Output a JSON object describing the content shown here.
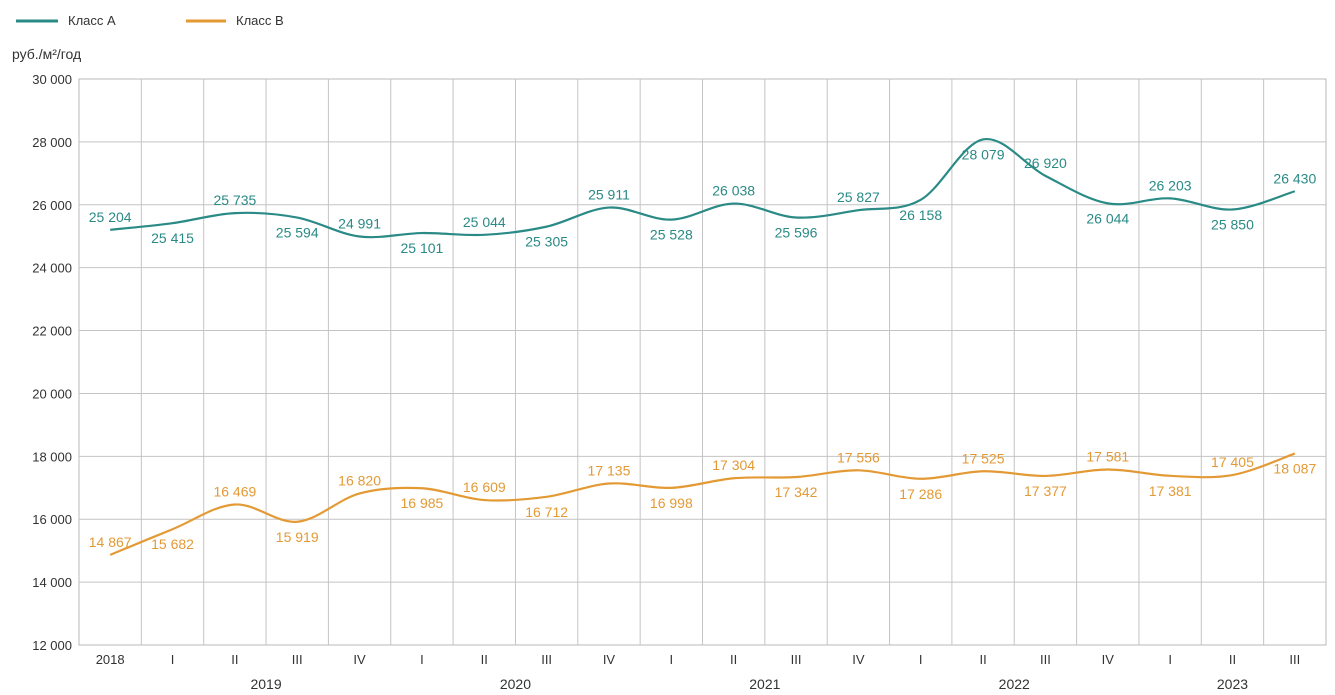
{
  "chart_data": {
    "type": "line",
    "unit_label": "руб./м²/год",
    "ylim": [
      12000,
      30000
    ],
    "ytick_step": 2000,
    "grid": true,
    "legend_position": "top-left",
    "x": [
      "2018",
      "I",
      "II",
      "III",
      "IV",
      "I",
      "II",
      "III",
      "IV",
      "I",
      "II",
      "III",
      "IV",
      "I",
      "II",
      "III",
      "IV",
      "I",
      "II",
      "III"
    ],
    "year_labels": [
      {
        "label": "2019",
        "from": 1,
        "to": 4
      },
      {
        "label": "2020",
        "from": 5,
        "to": 8
      },
      {
        "label": "2021",
        "from": 9,
        "to": 12
      },
      {
        "label": "2022",
        "from": 13,
        "to": 16
      },
      {
        "label": "2023",
        "from": 17,
        "to": 19
      }
    ],
    "series": [
      {
        "name": "Класс А",
        "color": "#2a8a86",
        "values": [
          25204,
          25415,
          25735,
          25594,
          24991,
          25101,
          25044,
          25305,
          25911,
          25528,
          26038,
          25596,
          25827,
          26158,
          28079,
          26920,
          26044,
          26203,
          25850,
          26430
        ],
        "labels": [
          "25 204",
          "25 415",
          "25 735",
          "25 594",
          "24 991",
          "25 101",
          "25 044",
          "25 305",
          "25 911",
          "25 528",
          "26 038",
          "25 596",
          "25 827",
          "26 158",
          "28 079",
          "26 920",
          "26 044",
          "26 203",
          "25 850",
          "26 430"
        ]
      },
      {
        "name": "Класс В",
        "color": "#e39a35",
        "values": [
          14867,
          15682,
          16469,
          15919,
          16820,
          16985,
          16609,
          16712,
          17135,
          16998,
          17304,
          17342,
          17556,
          17286,
          17525,
          17377,
          17581,
          17381,
          17405,
          18087
        ],
        "labels": [
          "14 867",
          "15 682",
          "16 469",
          "15 919",
          "16 820",
          "16 985",
          "16 609",
          "16 712",
          "17 135",
          "16 998",
          "17 304",
          "17 342",
          "17 556",
          "17 286",
          "17 525",
          "17 377",
          "17 581",
          "17 381",
          "17 405",
          "18 087"
        ]
      }
    ]
  }
}
